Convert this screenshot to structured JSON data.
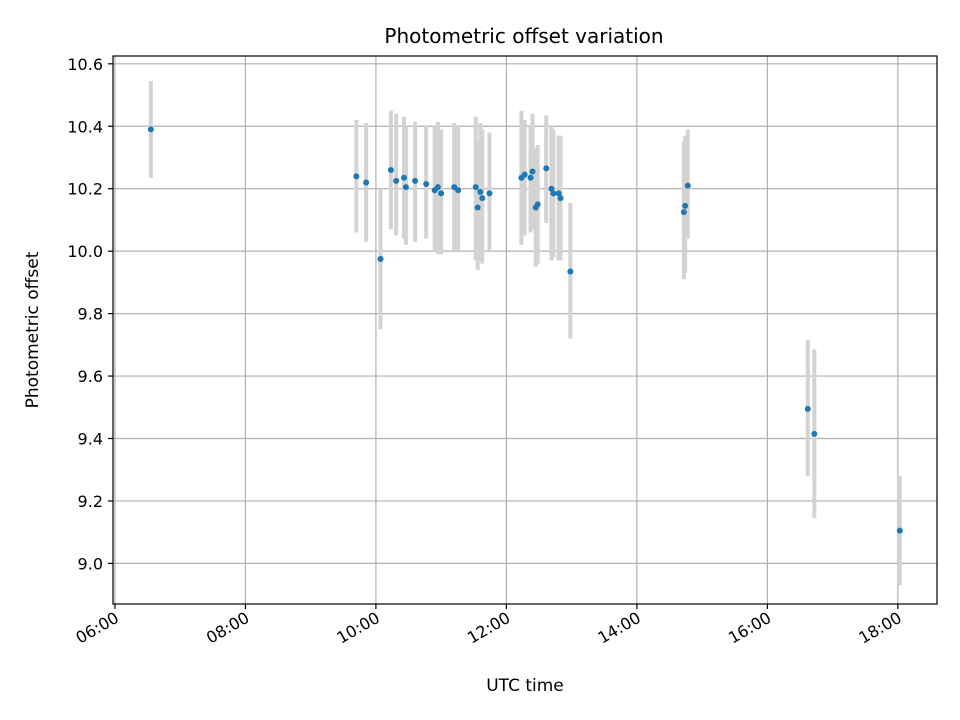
{
  "chart_data": {
    "type": "scatter",
    "title": "Photometric offset variation",
    "xlabel": "UTC time",
    "ylabel": "Photometric offset",
    "grid": true,
    "x_unit": "hours (UTC)",
    "xlim": [
      5.97,
      18.6
    ],
    "ylim": [
      8.87,
      10.625
    ],
    "x_ticks": [
      6,
      8,
      10,
      12,
      14,
      16,
      18
    ],
    "x_tick_labels": [
      "06:00",
      "08:00",
      "10:00",
      "12:00",
      "14:00",
      "16:00",
      "18:00"
    ],
    "y_ticks": [
      9.0,
      9.2,
      9.4,
      9.6,
      9.8,
      10.0,
      10.2,
      10.4,
      10.6
    ],
    "y_tick_labels": [
      "9.0",
      "9.2",
      "9.4",
      "9.6",
      "9.8",
      "10.0",
      "10.2",
      "10.4",
      "10.6"
    ],
    "colors": {
      "points": "#1f77b4",
      "errorbars": "#d3d3d3",
      "grid": "#b0b0b0"
    },
    "series": [
      {
        "points": [
          {
            "x": 6.55,
            "y": 10.39,
            "ylow": 10.235,
            "yhigh": 10.545
          },
          {
            "x": 9.7,
            "y": 10.24,
            "ylow": 10.06,
            "yhigh": 10.42
          },
          {
            "x": 9.85,
            "y": 10.22,
            "ylow": 10.03,
            "yhigh": 10.41
          },
          {
            "x": 10.07,
            "y": 9.975,
            "ylow": 9.75,
            "yhigh": 10.2
          },
          {
            "x": 10.23,
            "y": 10.26,
            "ylow": 10.07,
            "yhigh": 10.45
          },
          {
            "x": 10.31,
            "y": 10.225,
            "ylow": 10.05,
            "yhigh": 10.44
          },
          {
            "x": 10.43,
            "y": 10.235,
            "ylow": 10.04,
            "yhigh": 10.43
          },
          {
            "x": 10.46,
            "y": 10.205,
            "ylow": 10.02,
            "yhigh": 10.4
          },
          {
            "x": 10.6,
            "y": 10.225,
            "ylow": 10.03,
            "yhigh": 10.415
          },
          {
            "x": 10.77,
            "y": 10.215,
            "ylow": 10.04,
            "yhigh": 10.4
          },
          {
            "x": 10.9,
            "y": 10.195,
            "ylow": 10.0,
            "yhigh": 10.4
          },
          {
            "x": 10.95,
            "y": 10.205,
            "ylow": 9.99,
            "yhigh": 10.415
          },
          {
            "x": 11.0,
            "y": 10.185,
            "ylow": 9.99,
            "yhigh": 10.39
          },
          {
            "x": 11.2,
            "y": 10.205,
            "ylow": 10.0,
            "yhigh": 10.41
          },
          {
            "x": 11.26,
            "y": 10.195,
            "ylow": 10.0,
            "yhigh": 10.4
          },
          {
            "x": 11.53,
            "y": 10.205,
            "ylow": 9.97,
            "yhigh": 10.43
          },
          {
            "x": 11.56,
            "y": 10.14,
            "ylow": 9.94,
            "yhigh": 10.35
          },
          {
            "x": 11.6,
            "y": 10.19,
            "ylow": 9.97,
            "yhigh": 10.41
          },
          {
            "x": 11.63,
            "y": 10.17,
            "ylow": 9.96,
            "yhigh": 10.39
          },
          {
            "x": 11.74,
            "y": 10.185,
            "ylow": 10.0,
            "yhigh": 10.38
          },
          {
            "x": 12.23,
            "y": 10.235,
            "ylow": 10.02,
            "yhigh": 10.45
          },
          {
            "x": 12.28,
            "y": 10.245,
            "ylow": 10.05,
            "yhigh": 10.42
          },
          {
            "x": 12.37,
            "y": 10.235,
            "ylow": 10.06,
            "yhigh": 10.4
          },
          {
            "x": 12.4,
            "y": 10.255,
            "ylow": 10.07,
            "yhigh": 10.44
          },
          {
            "x": 12.45,
            "y": 10.14,
            "ylow": 9.95,
            "yhigh": 10.33
          },
          {
            "x": 12.48,
            "y": 10.15,
            "ylow": 9.96,
            "yhigh": 10.34
          },
          {
            "x": 12.61,
            "y": 10.265,
            "ylow": 10.09,
            "yhigh": 10.435
          },
          {
            "x": 12.69,
            "y": 10.2,
            "ylow": 9.97,
            "yhigh": 10.4
          },
          {
            "x": 12.72,
            "y": 10.185,
            "ylow": 9.98,
            "yhigh": 10.39
          },
          {
            "x": 12.8,
            "y": 10.185,
            "ylow": 9.97,
            "yhigh": 10.37
          },
          {
            "x": 12.83,
            "y": 10.17,
            "ylow": 9.97,
            "yhigh": 10.37
          },
          {
            "x": 12.98,
            "y": 9.935,
            "ylow": 9.72,
            "yhigh": 10.155
          },
          {
            "x": 14.72,
            "y": 10.125,
            "ylow": 9.91,
            "yhigh": 10.35
          },
          {
            "x": 14.74,
            "y": 10.145,
            "ylow": 9.93,
            "yhigh": 10.37
          },
          {
            "x": 14.78,
            "y": 10.21,
            "ylow": 10.04,
            "yhigh": 10.39
          },
          {
            "x": 16.62,
            "y": 9.495,
            "ylow": 9.28,
            "yhigh": 9.715
          },
          {
            "x": 16.72,
            "y": 9.415,
            "ylow": 9.145,
            "yhigh": 9.685
          },
          {
            "x": 18.03,
            "y": 9.105,
            "ylow": 8.93,
            "yhigh": 9.28
          }
        ]
      }
    ]
  }
}
